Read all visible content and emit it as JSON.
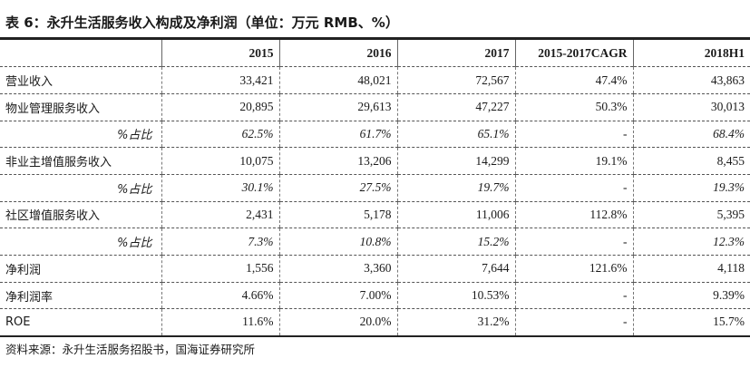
{
  "title": "表 6：永升生活服务收入构成及净利润（单位：万元 RMB、%）",
  "source": "资料来源：永升生活服务招股书，国海证券研究所",
  "table": {
    "columns": [
      "",
      "2015",
      "2016",
      "2017",
      "2015-2017CAGR",
      "2018H1"
    ],
    "rows": [
      [
        "营业收入",
        "33,421",
        "48,021",
        "72,567",
        "47.4%",
        "43,863"
      ],
      [
        "物业管理服务收入",
        "20,895",
        "29,613",
        "47,227",
        "50.3%",
        "30,013"
      ],
      [
        "%占比",
        "62.5%",
        "61.7%",
        "65.1%",
        "-",
        "68.4%"
      ],
      [
        "非业主增值服务收入",
        "10,075",
        "13,206",
        "14,299",
        "19.1%",
        "8,455"
      ],
      [
        "%占比",
        "30.1%",
        "27.5%",
        "19.7%",
        "-",
        "19.3%"
      ],
      [
        "社区增值服务收入",
        "2,431",
        "5,178",
        "11,006",
        "112.8%",
        "5,395"
      ],
      [
        "%占比",
        "7.3%",
        "10.8%",
        "15.2%",
        "-",
        "12.3%"
      ],
      [
        "净利润",
        "1,556",
        "3,360",
        "7,644",
        "121.6%",
        "4,118"
      ],
      [
        "净利润率",
        "4.66%",
        "7.00%",
        "10.53%",
        "-",
        "9.39%"
      ],
      [
        "ROE",
        "11.6%",
        "20.0%",
        "31.2%",
        "-",
        "15.7%"
      ]
    ]
  }
}
